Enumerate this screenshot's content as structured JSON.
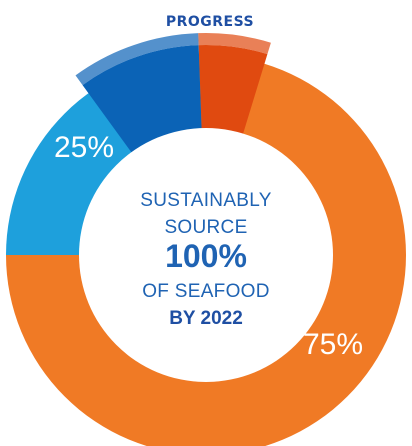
{
  "chart_data": {
    "type": "pie",
    "style": "donut",
    "title": "PROGRESS",
    "slices": [
      {
        "label": "75%",
        "value": 75,
        "color": "#f07a25"
      },
      {
        "label": "25%",
        "value": 25,
        "color": "#1ea0dc"
      }
    ],
    "highlight_segments": [
      {
        "color": "#0b63b6"
      },
      {
        "color": "#e04a10"
      }
    ],
    "center_lines": [
      "SUSTAINABLY",
      "SOURCE",
      "100%",
      "OF SEAFOOD",
      "BY 2022"
    ]
  }
}
